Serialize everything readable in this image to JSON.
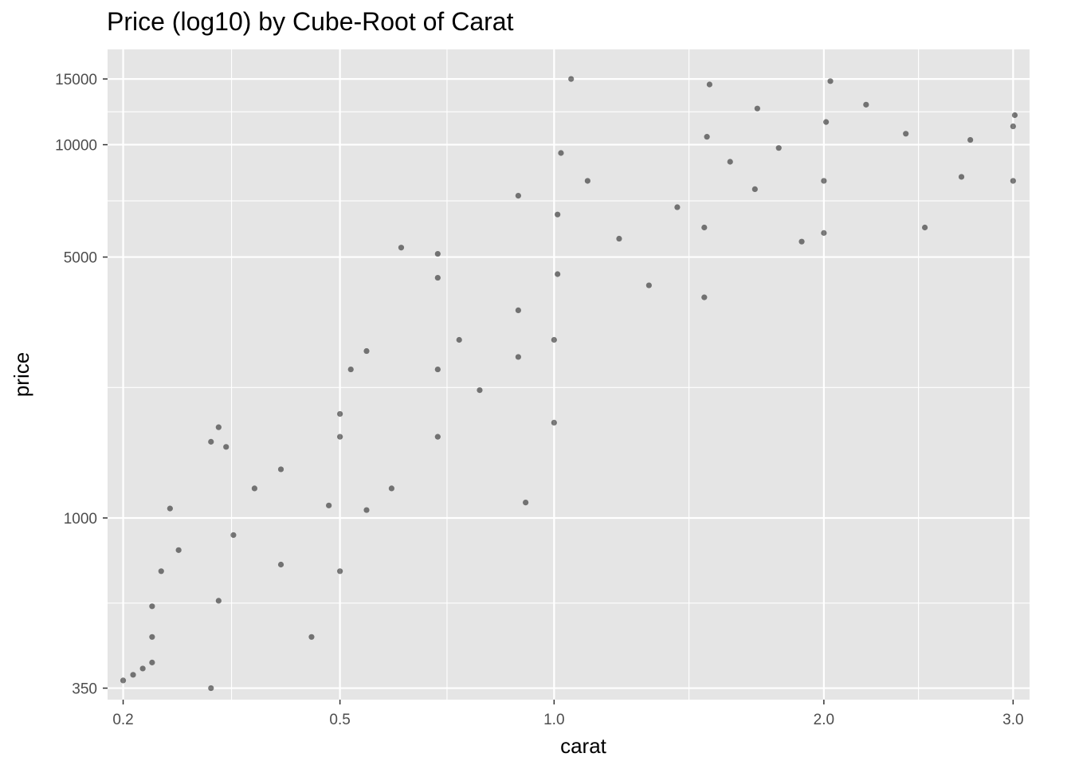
{
  "chart_data": {
    "type": "scatter",
    "title": "Price (log10) by Cube-Root of Carat",
    "xlabel": "carat",
    "ylabel": "price",
    "x_scale": "cube-root",
    "y_scale": "log10",
    "xlim": [
      0.185,
      3.1
    ],
    "ylim": [
      326,
      18000
    ],
    "x_ticks": [
      {
        "value": 0.2,
        "label": "0.2"
      },
      {
        "value": 0.5,
        "label": "0.5"
      },
      {
        "value": 1.0,
        "label": "1.0"
      },
      {
        "value": 2.0,
        "label": "2.0"
      },
      {
        "value": 3.0,
        "label": "3.0"
      }
    ],
    "y_ticks": [
      {
        "value": 350,
        "label": "350"
      },
      {
        "value": 1000,
        "label": "1000"
      },
      {
        "value": 5000,
        "label": "5000"
      },
      {
        "value": 10000,
        "label": "10000"
      },
      {
        "value": 15000,
        "label": "15000"
      }
    ],
    "grid": true,
    "legend": "none",
    "colors": {
      "panel": "#e5e5e5",
      "grid": "#ffffff",
      "point": "#000000"
    },
    "series": [
      {
        "values": [
          {
            "x": 0.2,
            "y": 367
          },
          {
            "x": 0.21,
            "y": 380
          },
          {
            "x": 0.22,
            "y": 395
          },
          {
            "x": 0.23,
            "y": 410
          },
          {
            "x": 0.23,
            "y": 480
          },
          {
            "x": 0.23,
            "y": 580
          },
          {
            "x": 0.24,
            "y": 720
          },
          {
            "x": 0.25,
            "y": 1060
          },
          {
            "x": 0.26,
            "y": 820
          },
          {
            "x": 0.3,
            "y": 1600
          },
          {
            "x": 0.31,
            "y": 1750
          },
          {
            "x": 0.32,
            "y": 1550
          },
          {
            "x": 0.3,
            "y": 350
          },
          {
            "x": 0.31,
            "y": 600
          },
          {
            "x": 0.33,
            "y": 900
          },
          {
            "x": 0.36,
            "y": 1200
          },
          {
            "x": 0.4,
            "y": 1350
          },
          {
            "x": 0.4,
            "y": 750
          },
          {
            "x": 0.45,
            "y": 480
          },
          {
            "x": 0.48,
            "y": 1080
          },
          {
            "x": 0.5,
            "y": 1650
          },
          {
            "x": 0.5,
            "y": 1900
          },
          {
            "x": 0.52,
            "y": 2500
          },
          {
            "x": 0.55,
            "y": 2800
          },
          {
            "x": 0.5,
            "y": 720
          },
          {
            "x": 0.55,
            "y": 1050
          },
          {
            "x": 0.6,
            "y": 1200
          },
          {
            "x": 0.62,
            "y": 5300
          },
          {
            "x": 0.7,
            "y": 1650
          },
          {
            "x": 0.7,
            "y": 2500
          },
          {
            "x": 0.7,
            "y": 4400
          },
          {
            "x": 0.7,
            "y": 5100
          },
          {
            "x": 0.75,
            "y": 3000
          },
          {
            "x": 0.8,
            "y": 2200
          },
          {
            "x": 0.9,
            "y": 2700
          },
          {
            "x": 0.9,
            "y": 3600
          },
          {
            "x": 0.9,
            "y": 7300
          },
          {
            "x": 0.92,
            "y": 1100
          },
          {
            "x": 1.0,
            "y": 1800
          },
          {
            "x": 1.0,
            "y": 3000
          },
          {
            "x": 1.01,
            "y": 4500
          },
          {
            "x": 1.01,
            "y": 6500
          },
          {
            "x": 1.02,
            "y": 9500
          },
          {
            "x": 1.05,
            "y": 15000
          },
          {
            "x": 1.1,
            "y": 8000
          },
          {
            "x": 1.2,
            "y": 5600
          },
          {
            "x": 1.3,
            "y": 4200
          },
          {
            "x": 1.4,
            "y": 6800
          },
          {
            "x": 1.5,
            "y": 3900
          },
          {
            "x": 1.5,
            "y": 6000
          },
          {
            "x": 1.51,
            "y": 10500
          },
          {
            "x": 1.52,
            "y": 14500
          },
          {
            "x": 1.6,
            "y": 9000
          },
          {
            "x": 1.7,
            "y": 7600
          },
          {
            "x": 1.71,
            "y": 12500
          },
          {
            "x": 1.8,
            "y": 9800
          },
          {
            "x": 1.9,
            "y": 5500
          },
          {
            "x": 2.0,
            "y": 5800
          },
          {
            "x": 2.0,
            "y": 8000
          },
          {
            "x": 2.01,
            "y": 11500
          },
          {
            "x": 2.03,
            "y": 14800
          },
          {
            "x": 2.2,
            "y": 12800
          },
          {
            "x": 2.4,
            "y": 10700
          },
          {
            "x": 2.5,
            "y": 6000
          },
          {
            "x": 2.7,
            "y": 8200
          },
          {
            "x": 2.75,
            "y": 10300
          },
          {
            "x": 3.0,
            "y": 8000
          },
          {
            "x": 3.0,
            "y": 11200
          },
          {
            "x": 3.01,
            "y": 12000
          }
        ]
      }
    ]
  }
}
